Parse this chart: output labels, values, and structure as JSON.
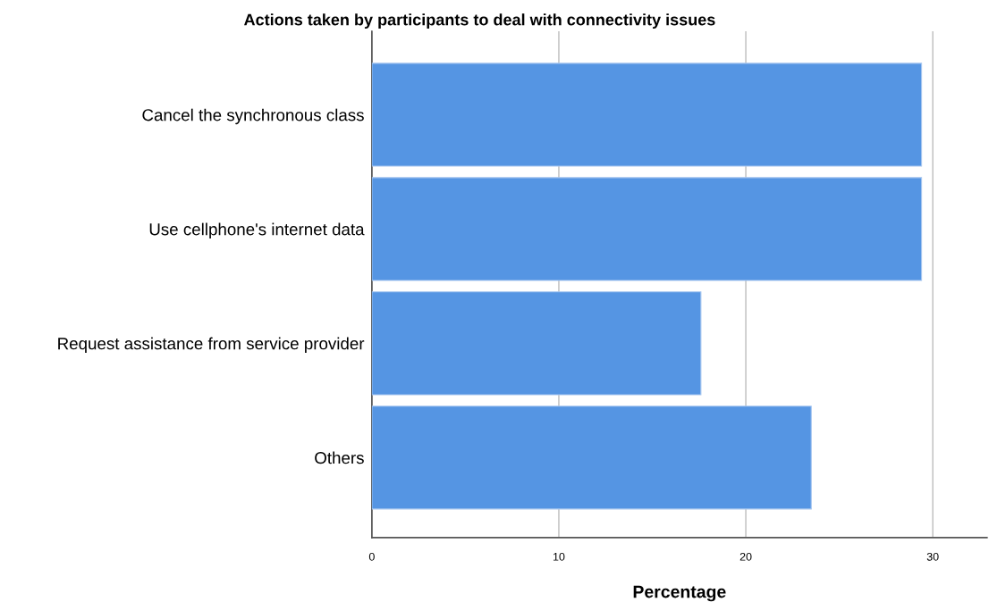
{
  "chart_data": {
    "type": "bar",
    "orientation": "horizontal",
    "title": "Actions taken by participants to deal with connectivity issues",
    "xlabel": "Percentage",
    "categories": [
      "Cancel the synchronous class",
      "Use cellphone's internet data",
      "Request assistance from service provider",
      "Others"
    ],
    "values": [
      29.4,
      29.4,
      17.6,
      23.5
    ],
    "color": "#5595e3",
    "xlim": [
      0,
      32.9
    ],
    "xticks": [
      0,
      10,
      20,
      30
    ],
    "grid": "x"
  }
}
